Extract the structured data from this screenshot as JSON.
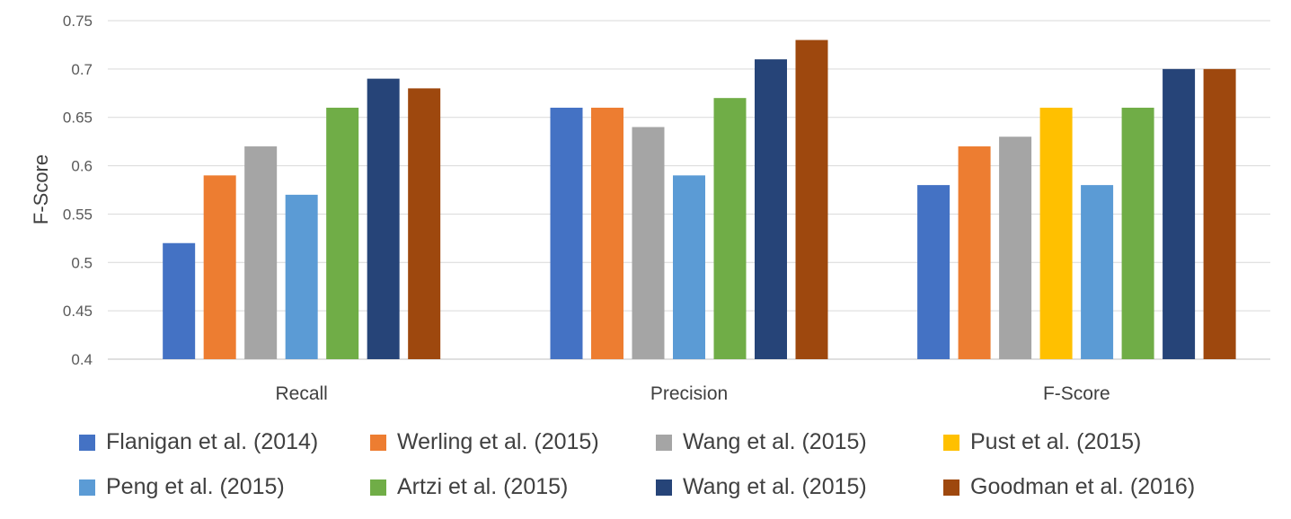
{
  "chart_data": {
    "type": "bar",
    "ylabel": "F-Score",
    "xlabel": "",
    "ylim": [
      0.4,
      0.75
    ],
    "yticks": [
      "0.4",
      "0.45",
      "0.5",
      "0.55",
      "0.6",
      "0.65",
      "0.7",
      "0.75"
    ],
    "grid": true,
    "legend_position": "bottom",
    "categories": [
      "Recall",
      "Precision",
      "F-Score"
    ],
    "series": [
      {
        "name": "Flanigan et al. (2014)",
        "color": "#4472C4",
        "values": [
          0.52,
          0.66,
          0.58
        ]
      },
      {
        "name": "Werling et al. (2015)",
        "color": "#ED7D31",
        "values": [
          0.59,
          0.66,
          0.62
        ]
      },
      {
        "name": "Wang et al. (2015)",
        "color": "#A5A5A5",
        "values": [
          0.62,
          0.64,
          0.63
        ]
      },
      {
        "name": "Pust et al. (2015)",
        "color": "#FFC000",
        "values": [
          null,
          null,
          0.66
        ]
      },
      {
        "name": "Peng et al. (2015)",
        "color": "#5B9BD5",
        "values": [
          0.57,
          0.59,
          0.58
        ]
      },
      {
        "name": "Artzi et al. (2015)",
        "color": "#70AD47",
        "values": [
          0.66,
          0.67,
          0.66
        ]
      },
      {
        "name": "Wang et al. (2015)",
        "color": "#264478",
        "values": [
          0.69,
          0.71,
          0.7
        ]
      },
      {
        "name": "Goodman et al. (2016)",
        "color": "#9E480E",
        "values": [
          0.68,
          0.73,
          0.7
        ]
      }
    ]
  }
}
